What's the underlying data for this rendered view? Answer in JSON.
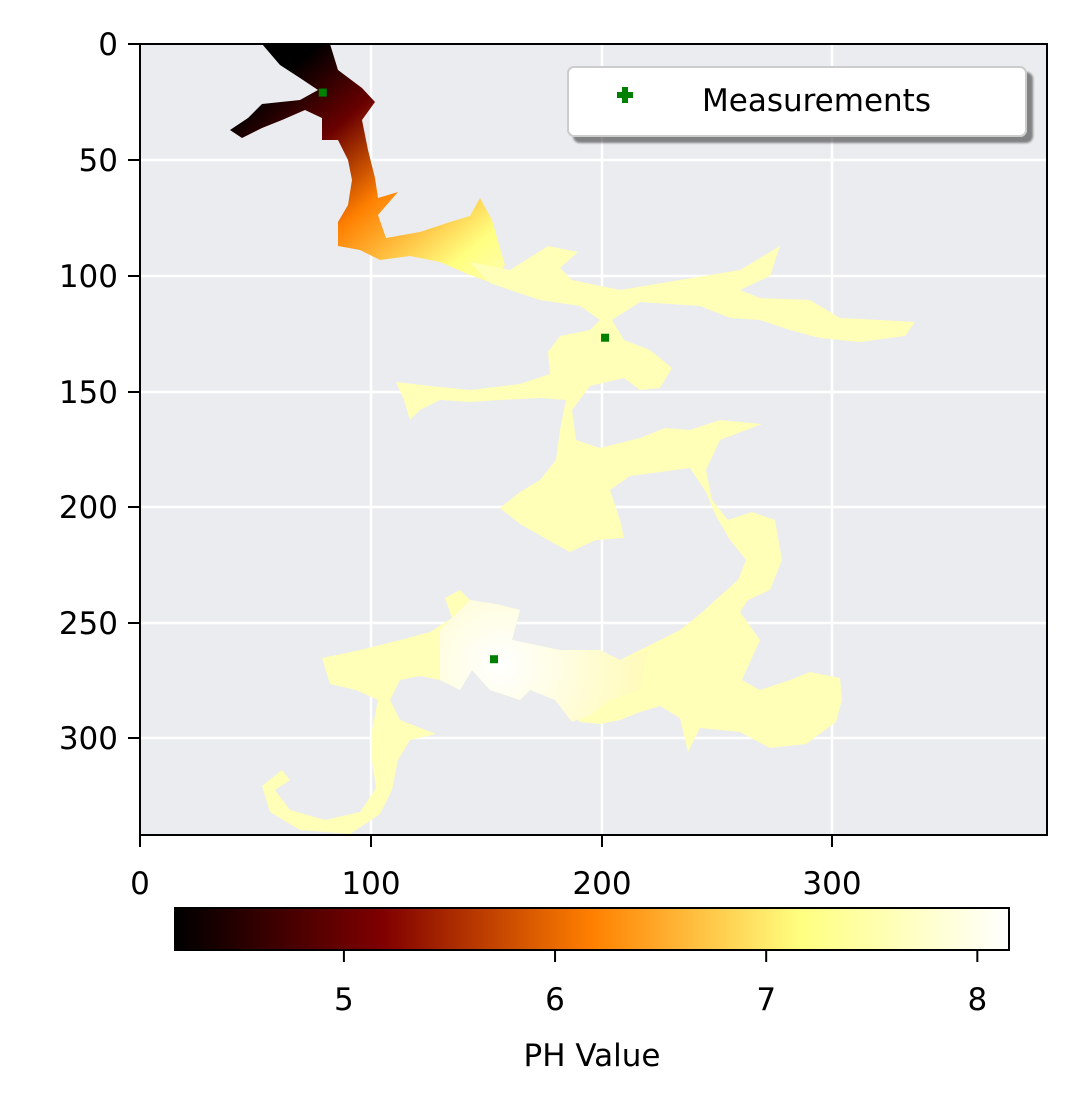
{
  "chart_data": {
    "type": "heatmap",
    "title": "",
    "xlabel": "",
    "ylabel": "",
    "x_ticks": [
      0,
      100,
      200,
      300
    ],
    "y_ticks": [
      0,
      50,
      100,
      150,
      200,
      250,
      300
    ],
    "xlim": [
      0,
      392
    ],
    "ylim": [
      342,
      0
    ],
    "grid": true,
    "background_color": "#eaecef",
    "colormap": "afmhot",
    "legend": {
      "placement": "upper right",
      "entries": [
        {
          "label": "Measurements",
          "marker": "plus",
          "color": "#008000"
        }
      ]
    },
    "measurements": [
      {
        "x": 79,
        "y": 21
      },
      {
        "x": 201,
        "y": 127
      },
      {
        "x": 153,
        "y": 266
      }
    ],
    "colorbar": {
      "label": "PH Value",
      "range": [
        4.2,
        8.15
      ],
      "ticks": [
        5,
        6,
        7,
        8
      ]
    },
    "region_ph_samples": [
      {
        "x": 85,
        "y": 25,
        "ph": 4.3
      },
      {
        "x": 95,
        "y": 70,
        "ph": 4.8
      },
      {
        "x": 140,
        "y": 88,
        "ph": 6.2
      },
      {
        "x": 180,
        "y": 105,
        "ph": 7.2
      },
      {
        "x": 300,
        "y": 120,
        "ph": 7.4
      },
      {
        "x": 200,
        "y": 150,
        "ph": 7.9
      },
      {
        "x": 190,
        "y": 205,
        "ph": 7.9
      },
      {
        "x": 265,
        "y": 230,
        "ph": 7.3
      },
      {
        "x": 155,
        "y": 265,
        "ph": 8.1
      },
      {
        "x": 270,
        "y": 285,
        "ph": 7.2
      },
      {
        "x": 90,
        "y": 320,
        "ph": 7.6
      }
    ]
  }
}
